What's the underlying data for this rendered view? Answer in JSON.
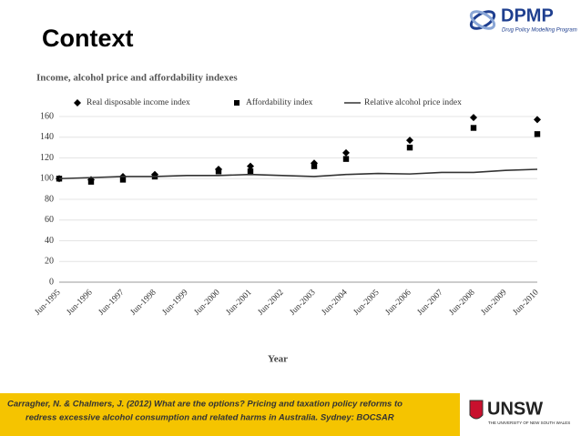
{
  "slide": {
    "title": "Context",
    "logo_top": {
      "name": "DPMP",
      "subtitle": "Drug Policy Modelling Program"
    },
    "logo_bottom": {
      "name": "UNSW",
      "subtitle": "THE UNIVERSITY OF NEW SOUTH WALES"
    },
    "citation": [
      "Carragher, N. & Chalmers, J. (2012) What are the options? Pricing and taxation policy reforms to",
      "redress excessive alcohol consumption and related harms in Australia. Sydney: BOCSAR"
    ]
  },
  "chart_data": {
    "type": "line",
    "title": "Income, alcohol price and affordability indexes",
    "x_label": "Year",
    "categories": [
      "Jun-1995",
      "Jun-1996",
      "Jun-1997",
      "Jun-1998",
      "Jun-1999",
      "Jun-2000",
      "Jun-2001",
      "Jun-2002",
      "Jun-2003",
      "Jun-2004",
      "Jun-2005",
      "Jun-2006",
      "Jun-2007",
      "Jun-2008",
      "Jun-2009",
      "Jun-2010"
    ],
    "series": [
      {
        "name": "Real disposable income index",
        "color": "#000000",
        "marker": "diamond",
        "values": [
          100,
          99,
          102,
          104,
          null,
          109,
          112,
          null,
          115,
          125,
          null,
          137,
          null,
          159,
          null,
          157
        ]
      },
      {
        "name": "Affordability index",
        "color": "#000000",
        "marker": "square",
        "values": [
          100,
          97,
          99,
          102,
          null,
          107,
          107,
          null,
          112,
          119,
          null,
          130,
          null,
          149,
          null,
          143
        ]
      },
      {
        "name": "Relative alcohol price index",
        "color": "#333333",
        "marker": "none",
        "values": [
          100,
          101,
          102,
          102,
          103,
          103,
          104,
          103,
          102,
          104,
          105,
          104.5,
          106,
          106,
          108,
          109
        ]
      }
    ],
    "ylim": [
      0,
      160
    ],
    "yticks": [
      0,
      20,
      40,
      60,
      80,
      100,
      120,
      140,
      160
    ],
    "grid": true
  }
}
